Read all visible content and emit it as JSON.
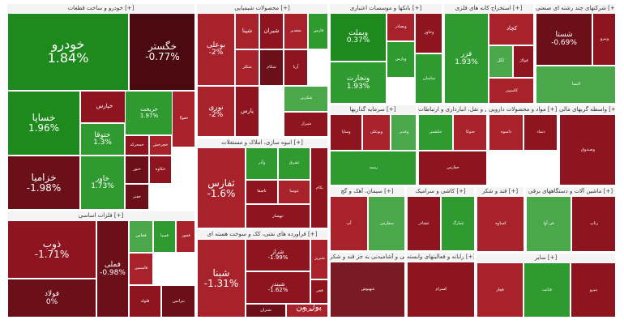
{
  "map": {
    "sectors": [
      {
        "id": "auto",
        "title": "خودرو و ساخت قطعات [+]"
      },
      {
        "id": "chem",
        "title": "محصولات شیمیایی [+]"
      },
      {
        "id": "bank",
        "title": "بانکها و موسسات اعتباری [+]"
      },
      {
        "id": "mine",
        "title": "استخراج کانه های فلزی [+]"
      },
      {
        "id": "multi",
        "title": "شرکتهای چند رشته ای صنعتی [+]"
      },
      {
        "id": "metal",
        "title": "فلزات اساسی [+]"
      },
      {
        "id": "build",
        "title": "انبوه سازی، املاک و مستغلات [+]"
      },
      {
        "id": "oil",
        "title": "فراورده های نفتی، کک و سوخت هسته ای [+]"
      },
      {
        "id": "invest",
        "title": "سرمایه گذاریها [+]"
      },
      {
        "id": "transport",
        "title": "حمل و نقل، انبارداری و ارتباطات [+]"
      },
      {
        "id": "pharma",
        "title": "مواد و محصولات دارویی [+]"
      },
      {
        "id": "holding",
        "title": "واسطه گریهای مالی [+]"
      },
      {
        "id": "cement",
        "title": "سیمان، آهک و گچ [+]"
      },
      {
        "id": "food",
        "title": "محصولات غذایی و آشامیدنی به جز قند و شکر [+]"
      },
      {
        "id": "tile",
        "title": "کاشی و سرامیک [+]"
      },
      {
        "id": "it",
        "title": "رایانه و فعالیتهای وابسته [+]"
      },
      {
        "id": "sugar",
        "title": "قند و شکر [+]"
      },
      {
        "id": "elec",
        "title": "ماشین آلات و دستگاههای برقی [+]"
      },
      {
        "id": "misc",
        "title": "سایر [+]"
      }
    ],
    "tiles": [
      {
        "sym": "خودرو",
        "chg": "1.84%"
      },
      {
        "sym": "خگستر",
        "chg": "-0.77%"
      },
      {
        "sym": "خساپا",
        "chg": "1.96%"
      },
      {
        "sym": "خپارس",
        "chg": ""
      },
      {
        "sym": "خزامیا",
        "chg": "-1.98%"
      },
      {
        "sym": "ختوقا",
        "chg": "1.3%"
      },
      {
        "sym": "خاور",
        "chg": "1.73%"
      },
      {
        "sym": "خریخت",
        "chg": "1.97%"
      },
      {
        "sym": "خمحرکه",
        "chg": ""
      },
      {
        "sym": "خچرخش",
        "chg": ""
      },
      {
        "sym": "ختور",
        "chg": ""
      },
      {
        "sym": "خکاوه",
        "chg": ""
      },
      {
        "sym": "خفنر",
        "chg": ""
      },
      {
        "sym": "خفولا",
        "chg": ""
      },
      {
        "sym": "بوعلی",
        "chg": "-2%"
      },
      {
        "sym": "نوری",
        "chg": "-2%"
      },
      {
        "sym": "پارس",
        "chg": ""
      },
      {
        "sym": "شپنا",
        "chg": ""
      },
      {
        "sym": "شیران",
        "chg": ""
      },
      {
        "sym": "شکلر",
        "chg": ""
      },
      {
        "sym": "شکام",
        "chg": ""
      },
      {
        "sym": "شغدیر",
        "chg": ""
      },
      {
        "sym": "فارس",
        "chg": ""
      },
      {
        "sym": "آریا",
        "chg": ""
      },
      {
        "sym": "شکربن",
        "chg": ""
      },
      {
        "sym": "شیراز",
        "chg": ""
      },
      {
        "sym": "وبملت",
        "chg": "0.37%"
      },
      {
        "sym": "وبصادر",
        "chg": ""
      },
      {
        "sym": "وتجارت",
        "chg": "1.93%"
      },
      {
        "sym": "وپارس",
        "chg": ""
      },
      {
        "sym": "وخاور",
        "chg": ""
      },
      {
        "sym": "ساسان",
        "chg": ""
      },
      {
        "sym": "فزر",
        "chg": "1.93%"
      },
      {
        "sym": "کچاد",
        "chg": ""
      },
      {
        "sym": "کگل",
        "chg": ""
      },
      {
        "sym": "فولاژ",
        "chg": ""
      },
      {
        "sym": "کاسپین",
        "chg": ""
      },
      {
        "sym": "شستا",
        "chg": "-0.69%"
      },
      {
        "sym": "وپترو",
        "chg": ""
      },
      {
        "sym": "ذوب",
        "chg": "-1.71%"
      },
      {
        "sym": "فولاد",
        "chg": "0%"
      },
      {
        "sym": "فملی",
        "chg": "-0.98%"
      },
      {
        "sym": "فخاس",
        "chg": ""
      },
      {
        "sym": "فسپا",
        "chg": ""
      },
      {
        "sym": "فخوز",
        "chg": ""
      },
      {
        "sym": "فاسمین",
        "chg": ""
      },
      {
        "sym": "فلوله",
        "chg": ""
      },
      {
        "sym": "ثفارس",
        "chg": "-1.6%"
      },
      {
        "sym": "وآذر",
        "chg": ""
      },
      {
        "sym": "ثشرق",
        "chg": ""
      },
      {
        "sym": "ثاصفا",
        "chg": ""
      },
      {
        "sym": "ثنوسا",
        "chg": ""
      },
      {
        "sym": "ثبهساز",
        "chg": ""
      },
      {
        "sym": "شبنا",
        "chg": "-1.31%"
      },
      {
        "sym": "شراز",
        "chg": "-1.99%"
      },
      {
        "sym": "شبندر",
        "chg": "-1.62%"
      },
      {
        "sym": "شبریز",
        "chg": ""
      },
      {
        "sym": "شتران",
        "chg": ""
      },
      {
        "sym": "شرانل",
        "chg": ""
      },
      {
        "sym": "وساپا",
        "chg": ""
      },
      {
        "sym": "وبوعلی",
        "chg": ""
      },
      {
        "sym": "وغدیر",
        "chg": ""
      },
      {
        "sym": "وصندوق",
        "chg": ""
      },
      {
        "sym": "حکشتی",
        "chg": ""
      },
      {
        "sym": "حتوکا",
        "chg": ""
      },
      {
        "sym": "حفارس",
        "chg": ""
      },
      {
        "sym": "داسوه",
        "chg": ""
      },
      {
        "sym": "دتماد",
        "chg": ""
      },
      {
        "sym": "ربیمه",
        "chg": ""
      },
      {
        "sym": "آپ",
        "chg": ""
      },
      {
        "sym": "سفارس",
        "chg": ""
      },
      {
        "sym": "سخوز",
        "chg": ""
      },
      {
        "sym": "سپاهان",
        "chg": ""
      },
      {
        "sym": "سدشت",
        "chg": ""
      },
      {
        "sym": "غبهنوش",
        "chg": ""
      },
      {
        "sym": "غشاذر",
        "chg": ""
      },
      {
        "sym": "غمارگ",
        "chg": ""
      },
      {
        "sym": "کسرام",
        "chg": ""
      },
      {
        "sym": "کساوه",
        "chg": ""
      },
      {
        "sym": "فن آوا",
        "chg": ""
      },
      {
        "sym": "رتاپ",
        "chg": ""
      },
      {
        "sym": "قچار",
        "chg": ""
      },
      {
        "sym": "قثابت",
        "chg": ""
      },
      {
        "sym": "بنیرو",
        "chg": ""
      },
      {
        "sym": "بترانس",
        "chg": ""
      },
      {
        "sym": "بکام",
        "chg": ""
      },
      {
        "sym": "فجر",
        "chg": ""
      },
      {
        "sym": "لابسا",
        "chg": ""
      }
    ]
  }
}
